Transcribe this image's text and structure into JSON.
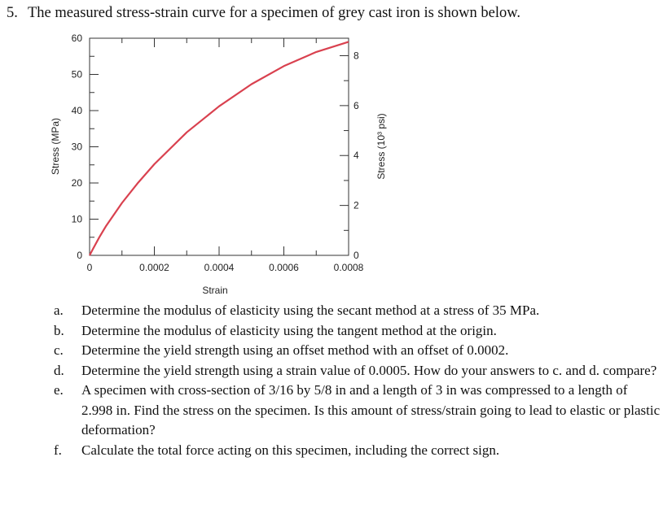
{
  "problem": {
    "number": "5.",
    "statement": "The measured stress-strain curve for a specimen of grey cast iron is shown below."
  },
  "chart_data": {
    "type": "line",
    "xlabel": "Strain",
    "ylabel": "Stress (MPa)",
    "y2label": "Stress (10³ psi)",
    "xlim": [
      0,
      0.0008
    ],
    "ylim": [
      0,
      60
    ],
    "y2lim": [
      0,
      8.7
    ],
    "x_ticks": [
      0,
      0.0002,
      0.0004,
      0.0006,
      0.0008
    ],
    "x_tick_labels": [
      "0",
      "0.0002",
      "0.0004",
      "0.0006",
      "0.0008"
    ],
    "y_ticks": [
      0,
      10,
      20,
      30,
      40,
      50,
      60
    ],
    "y_tick_labels": [
      "0",
      "10",
      "20",
      "30",
      "40",
      "50",
      "60"
    ],
    "y2_ticks": [
      0,
      2,
      4,
      6,
      8
    ],
    "y2_tick_labels": [
      "0",
      "2",
      "4",
      "6",
      "8"
    ],
    "grid": false,
    "line_color": "#d9414f",
    "series": [
      {
        "x": [
          0,
          1e-05,
          3e-05,
          5e-05,
          0.0001,
          0.00015,
          0.0002,
          0.0003,
          0.0004,
          0.0005,
          0.0006,
          0.0007,
          0.0008
        ],
        "y": [
          0,
          1.7,
          5.0,
          8.0,
          14.5,
          20.1,
          25.2,
          34.0,
          41.2,
          47.3,
          52.3,
          56.2,
          59.0
        ]
      }
    ]
  },
  "questions": [
    {
      "letter": "a.",
      "text": "Determine the modulus of elasticity using the secant method at a stress of 35 MPa."
    },
    {
      "letter": "b.",
      "text": "Determine the modulus of elasticity using the tangent method at the origin."
    },
    {
      "letter": "c.",
      "text": "Determine the yield strength using an offset method with an offset of 0.0002."
    },
    {
      "letter": "d.",
      "text": "Determine the yield strength using a strain value of 0.0005. How do your answers to c. and d. compare?"
    },
    {
      "letter": "e.",
      "text": "A specimen with cross-section of 3/16 by 5/8 in and a length of 3 in was compressed to a length of 2.998 in. Find the stress on the specimen. Is this amount of stress/strain going to lead to elastic or plastic deformation?"
    },
    {
      "letter": "f.",
      "text": "Calculate the total force acting on this specimen, including the correct sign."
    }
  ]
}
